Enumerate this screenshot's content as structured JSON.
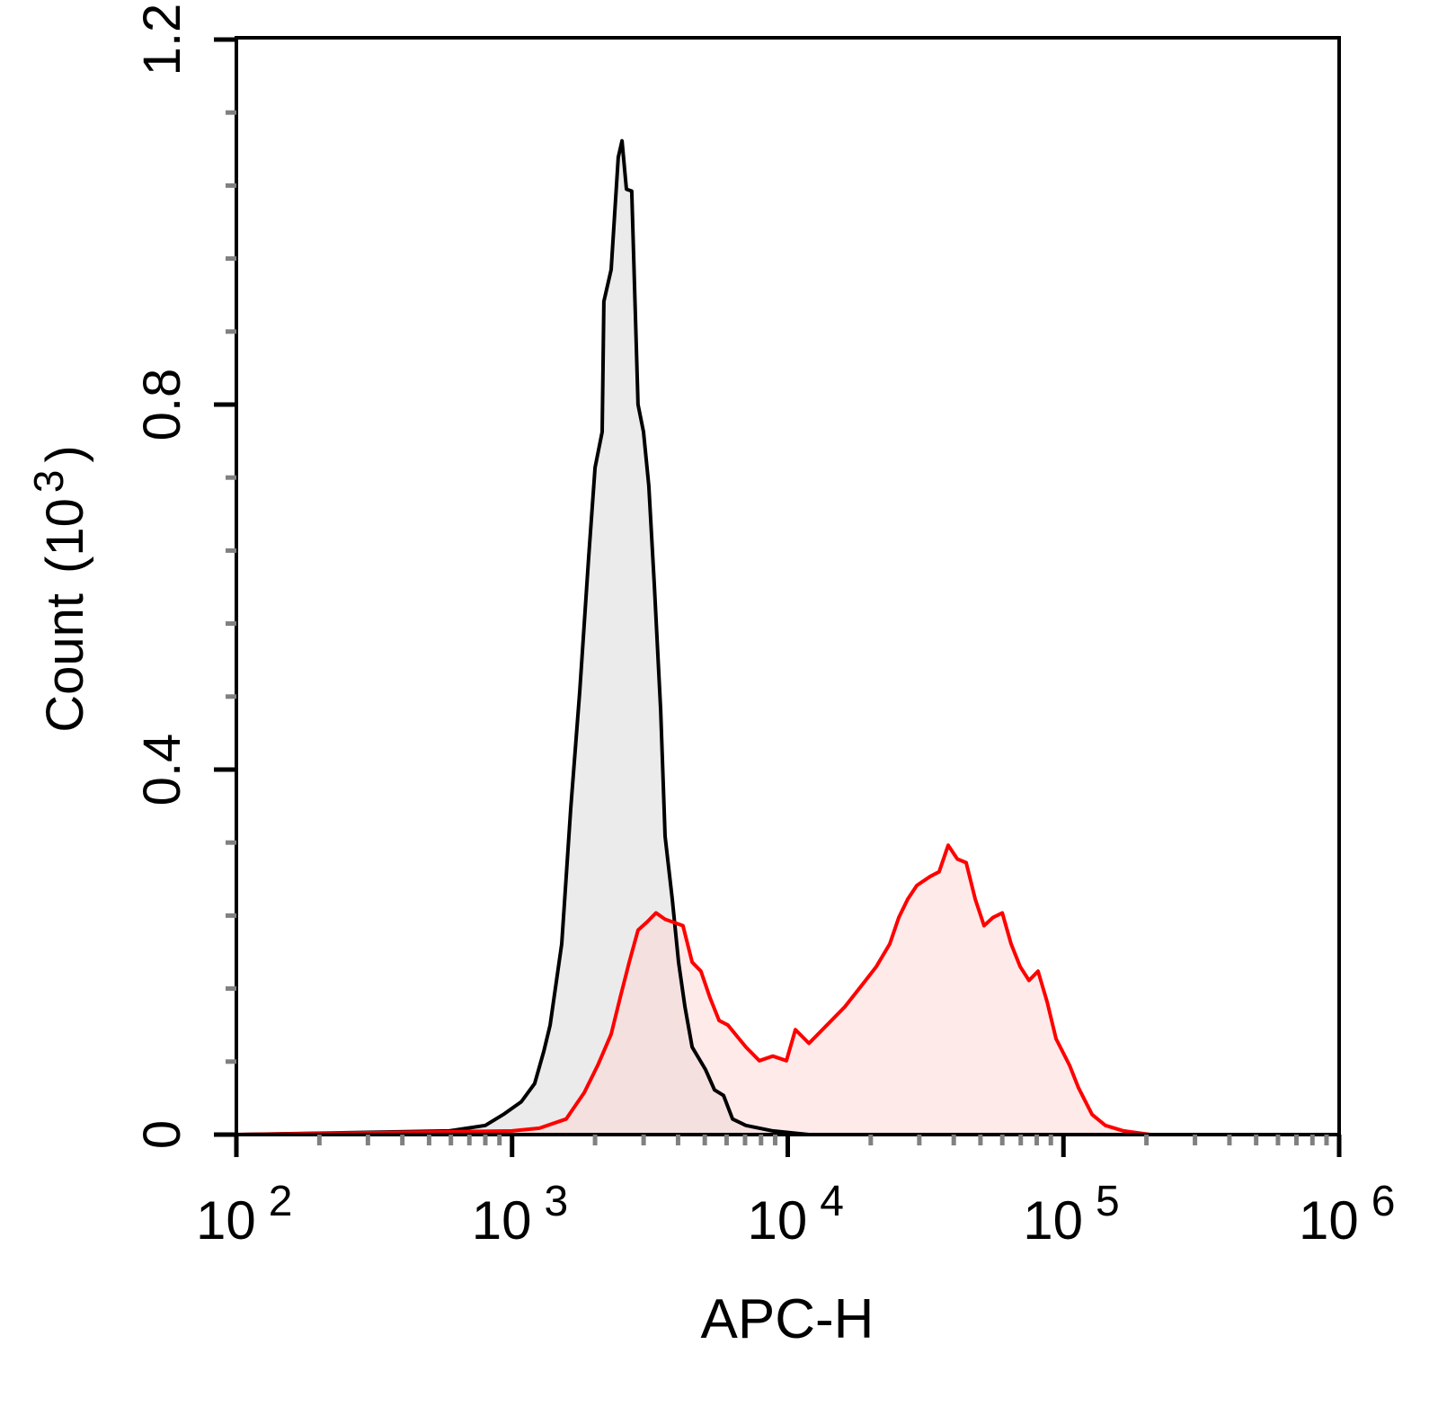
{
  "chart_data": {
    "type": "area",
    "xlabel": "APC-H",
    "ylabel": "Count",
    "ylabel_unit_base": "10",
    "ylabel_unit_exp": "3",
    "xscale": "log",
    "xlim": [
      100,
      1000000
    ],
    "ylim": [
      0,
      1.2
    ],
    "grid": false,
    "x_ticks": [
      {
        "base": "10",
        "exp": "2",
        "value": 100
      },
      {
        "base": "10",
        "exp": "3",
        "value": 1000
      },
      {
        "base": "10",
        "exp": "4",
        "value": 10000
      },
      {
        "base": "10",
        "exp": "5",
        "value": 100000
      },
      {
        "base": "10",
        "exp": "6",
        "value": 1000000
      }
    ],
    "y_ticks": [
      {
        "label": "0",
        "value": 0
      },
      {
        "label": "0.4",
        "value": 0.4
      },
      {
        "label": "0.8",
        "value": 0.8
      },
      {
        "label": "1.2",
        "value": 1.2
      }
    ],
    "series": [
      {
        "color": "#000000",
        "fill": "#e0e0e0",
        "x": [
          100,
          593,
          800,
          929,
          1080,
          1208,
          1303,
          1374,
          1514,
          1632,
          1759,
          1897,
          2000,
          2123,
          2153,
          2287,
          2428,
          2505,
          2600,
          2717,
          2864,
          2998,
          3133,
          3281,
          3459,
          3589,
          3811,
          4018,
          4236,
          4498,
          5035,
          5423,
          5847,
          6305,
          7047,
          8830,
          11940,
          1000000
        ],
        "y": [
          0,
          0.004,
          0.01,
          0.022,
          0.036,
          0.056,
          0.091,
          0.12,
          0.209,
          0.357,
          0.485,
          0.633,
          0.731,
          0.77,
          0.913,
          0.948,
          1.071,
          1.089,
          1.036,
          1.034,
          0.8,
          0.77,
          0.711,
          0.603,
          0.465,
          0.327,
          0.258,
          0.189,
          0.14,
          0.096,
          0.071,
          0.049,
          0.043,
          0.017,
          0.01,
          0.004,
          0,
          0
        ]
      },
      {
        "color": "#ff0000",
        "fill": "#ffd6d6",
        "x": [
          100,
          1000,
          1256,
          1571,
          1828,
          2045,
          2287,
          2466,
          2660,
          2864,
          3090,
          3327,
          3589,
          4169,
          4498,
          4842,
          5224,
          5636,
          6067,
          7047,
          7889,
          8830,
          9886,
          10660,
          11940,
          13870,
          16110,
          18710,
          20940,
          23440,
          25290,
          27230,
          29380,
          32890,
          35400,
          38190,
          41210,
          44360,
          47860,
          51520,
          55590,
          59980,
          64570,
          69660,
          74990,
          80910,
          87300,
          93970,
          105200,
          113500,
          127000,
          141900,
          165200,
          206500,
          1000000
        ],
        "y": [
          0,
          0.004,
          0.007,
          0.017,
          0.046,
          0.076,
          0.11,
          0.15,
          0.189,
          0.224,
          0.233,
          0.243,
          0.236,
          0.229,
          0.189,
          0.179,
          0.15,
          0.125,
          0.12,
          0.096,
          0.081,
          0.086,
          0.081,
          0.115,
          0.1,
          0.12,
          0.14,
          0.165,
          0.184,
          0.209,
          0.238,
          0.258,
          0.273,
          0.283,
          0.288,
          0.317,
          0.302,
          0.298,
          0.258,
          0.229,
          0.238,
          0.243,
          0.209,
          0.184,
          0.169,
          0.179,
          0.145,
          0.105,
          0.076,
          0.051,
          0.022,
          0.01,
          0.004,
          0,
          0
        ]
      }
    ]
  }
}
